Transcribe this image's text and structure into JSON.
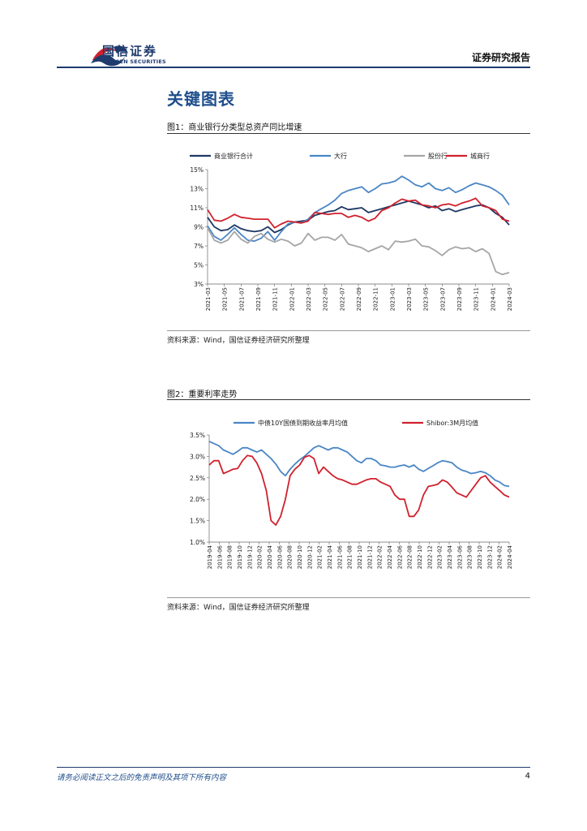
{
  "header": {
    "logo_cn": "国信证券",
    "logo_en": "GUOSEN SECURITIES",
    "report_type": "证券研究报告"
  },
  "section_title": "关键图表",
  "figure1": {
    "title": "图1：商业银行分类型总资产同比增速",
    "source": "资料来源：Wind，国信证券经济研究所整理"
  },
  "figure2": {
    "title": "图2：重要利率走势",
    "source": "资料来源：Wind，国信证券经济研究所整理"
  },
  "footer": {
    "disclaimer": "请务必阅读正文之后的免责声明及其项下所有内容",
    "page_number": "4"
  },
  "colors": {
    "dark_navy": "#1f3864",
    "blue": "#4a86c5",
    "gray": "#a6a6a6",
    "red": "#d0212d"
  },
  "chart_data": [
    {
      "type": "line",
      "title": "图1：商业银行分类型总资产同比增速",
      "x_tick_labels": [
        "2021-03",
        "2021-05",
        "2021-07",
        "2021-09",
        "2021-11",
        "2022-01",
        "2022-03",
        "2022-05",
        "2022-07",
        "2022-09",
        "2022-11",
        "2023-01",
        "2023-03",
        "2023-05",
        "2023-07",
        "2023-09",
        "2023-11",
        "2024-01",
        "2024-03"
      ],
      "y_tick_labels": [
        "15%",
        "13%",
        "11%",
        "9%",
        "7%",
        "5%",
        "3%"
      ],
      "ylim": [
        3,
        15
      ],
      "legend_position": "top",
      "series": [
        {
          "name": "商业银行合计",
          "color": "#1f3864",
          "values": [
            10.0,
            9.0,
            8.6,
            8.7,
            9.2,
            8.8,
            8.6,
            8.5,
            8.6,
            9.0,
            8.4,
            8.7,
            9.2,
            9.5,
            9.6,
            9.7,
            10.2,
            10.4,
            10.6,
            10.7,
            11.1,
            10.8,
            10.9,
            11.0,
            10.5,
            10.7,
            10.9,
            11.1,
            11.3,
            11.5,
            11.7,
            11.5,
            11.3,
            11.0,
            11.2,
            10.7,
            10.9,
            10.6,
            10.8,
            11.0,
            11.2,
            11.3,
            11.0,
            10.4,
            10.0,
            9.2
          ]
        },
        {
          "name": "大行",
          "color": "#4a86c5",
          "values": [
            9.1,
            8.0,
            7.6,
            8.2,
            8.9,
            8.2,
            7.6,
            7.5,
            7.8,
            8.5,
            7.6,
            8.5,
            9.3,
            9.5,
            9.4,
            9.8,
            10.5,
            10.9,
            11.3,
            11.8,
            12.5,
            12.8,
            13.0,
            13.2,
            12.6,
            13.0,
            13.5,
            13.6,
            13.8,
            14.3,
            13.9,
            13.4,
            13.2,
            13.6,
            13.0,
            12.8,
            13.1,
            12.6,
            12.9,
            13.3,
            13.6,
            13.4,
            13.2,
            12.8,
            12.3,
            11.3
          ]
        },
        {
          "name": "股份行",
          "color": "#a6a6a6",
          "values": [
            8.9,
            7.6,
            7.3,
            7.6,
            8.5,
            7.7,
            7.3,
            8.0,
            8.3,
            7.7,
            7.4,
            7.7,
            7.5,
            7.0,
            7.3,
            8.3,
            7.6,
            7.9,
            7.9,
            7.6,
            8.2,
            7.2,
            7.0,
            6.8,
            6.4,
            6.7,
            7.0,
            6.6,
            7.5,
            7.4,
            7.5,
            7.7,
            7.0,
            6.9,
            6.5,
            6.0,
            6.6,
            6.9,
            6.7,
            6.8,
            6.4,
            6.7,
            6.2,
            4.3,
            4.0,
            4.2
          ]
        },
        {
          "name": "城商行",
          "color": "#d0212d",
          "values": [
            10.8,
            9.7,
            9.6,
            9.9,
            10.3,
            10.0,
            9.9,
            9.8,
            9.8,
            9.8,
            8.9,
            9.3,
            9.6,
            9.5,
            9.4,
            9.6,
            10.5,
            10.4,
            10.3,
            10.4,
            10.4,
            10.0,
            10.2,
            10.0,
            9.6,
            9.9,
            10.7,
            11.0,
            11.5,
            11.9,
            11.7,
            11.8,
            11.3,
            11.2,
            11.0,
            11.3,
            11.4,
            11.2,
            11.5,
            11.7,
            12.0,
            11.2,
            11.0,
            10.7,
            9.8,
            9.6
          ]
        }
      ]
    },
    {
      "type": "line",
      "title": "图2：重要利率走势",
      "x_tick_labels": [
        "2019-04",
        "2019-06",
        "2019-08",
        "2019-10",
        "2019-12",
        "2020-02",
        "2020-04",
        "2020-06",
        "2020-08",
        "2020-10",
        "2020-12",
        "2021-02",
        "2021-04",
        "2021-06",
        "2021-08",
        "2021-10",
        "2021-12",
        "2022-02",
        "2022-04",
        "2022-06",
        "2022-08",
        "2022-10",
        "2022-12",
        "2023-02",
        "2023-04",
        "2023-06",
        "2023-08",
        "2023-10",
        "2023-12",
        "2024-02",
        "2024-04"
      ],
      "y_tick_labels": [
        "3.5%",
        "3.0%",
        "2.5%",
        "2.0%",
        "1.5%",
        "1.0%"
      ],
      "ylim": [
        1.0,
        3.5
      ],
      "legend_position": "top",
      "series": [
        {
          "name": "中债10Y国债到期收益率月均值",
          "color": "#4a86c5",
          "values": [
            3.35,
            3.3,
            3.25,
            3.15,
            3.1,
            3.05,
            3.12,
            3.2,
            3.2,
            3.15,
            3.1,
            3.15,
            3.05,
            2.95,
            2.82,
            2.65,
            2.55,
            2.7,
            2.82,
            2.92,
            3.0,
            3.1,
            3.2,
            3.25,
            3.2,
            3.15,
            3.2,
            3.2,
            3.15,
            3.1,
            3.0,
            2.9,
            2.85,
            2.95,
            2.95,
            2.9,
            2.8,
            2.78,
            2.75,
            2.75,
            2.78,
            2.8,
            2.75,
            2.8,
            2.7,
            2.65,
            2.72,
            2.78,
            2.85,
            2.9,
            2.88,
            2.85,
            2.75,
            2.68,
            2.65,
            2.6,
            2.62,
            2.65,
            2.62,
            2.55,
            2.45,
            2.4,
            2.32,
            2.3
          ]
        },
        {
          "name": "Shibor:3M月均值",
          "color": "#d0212d",
          "values": [
            2.8,
            2.9,
            2.9,
            2.6,
            2.65,
            2.7,
            2.72,
            2.9,
            3.02,
            3.0,
            2.85,
            2.6,
            2.2,
            1.5,
            1.4,
            1.6,
            2.0,
            2.55,
            2.7,
            2.8,
            2.98,
            3.02,
            2.95,
            2.6,
            2.75,
            2.65,
            2.55,
            2.48,
            2.45,
            2.4,
            2.35,
            2.35,
            2.4,
            2.45,
            2.48,
            2.48,
            2.4,
            2.35,
            2.3,
            2.1,
            2.0,
            2.0,
            1.6,
            1.6,
            1.75,
            2.1,
            2.3,
            2.32,
            2.35,
            2.45,
            2.4,
            2.28,
            2.15,
            2.1,
            2.05,
            2.2,
            2.35,
            2.5,
            2.55,
            2.4,
            2.3,
            2.2,
            2.1,
            2.05
          ]
        }
      ]
    }
  ]
}
